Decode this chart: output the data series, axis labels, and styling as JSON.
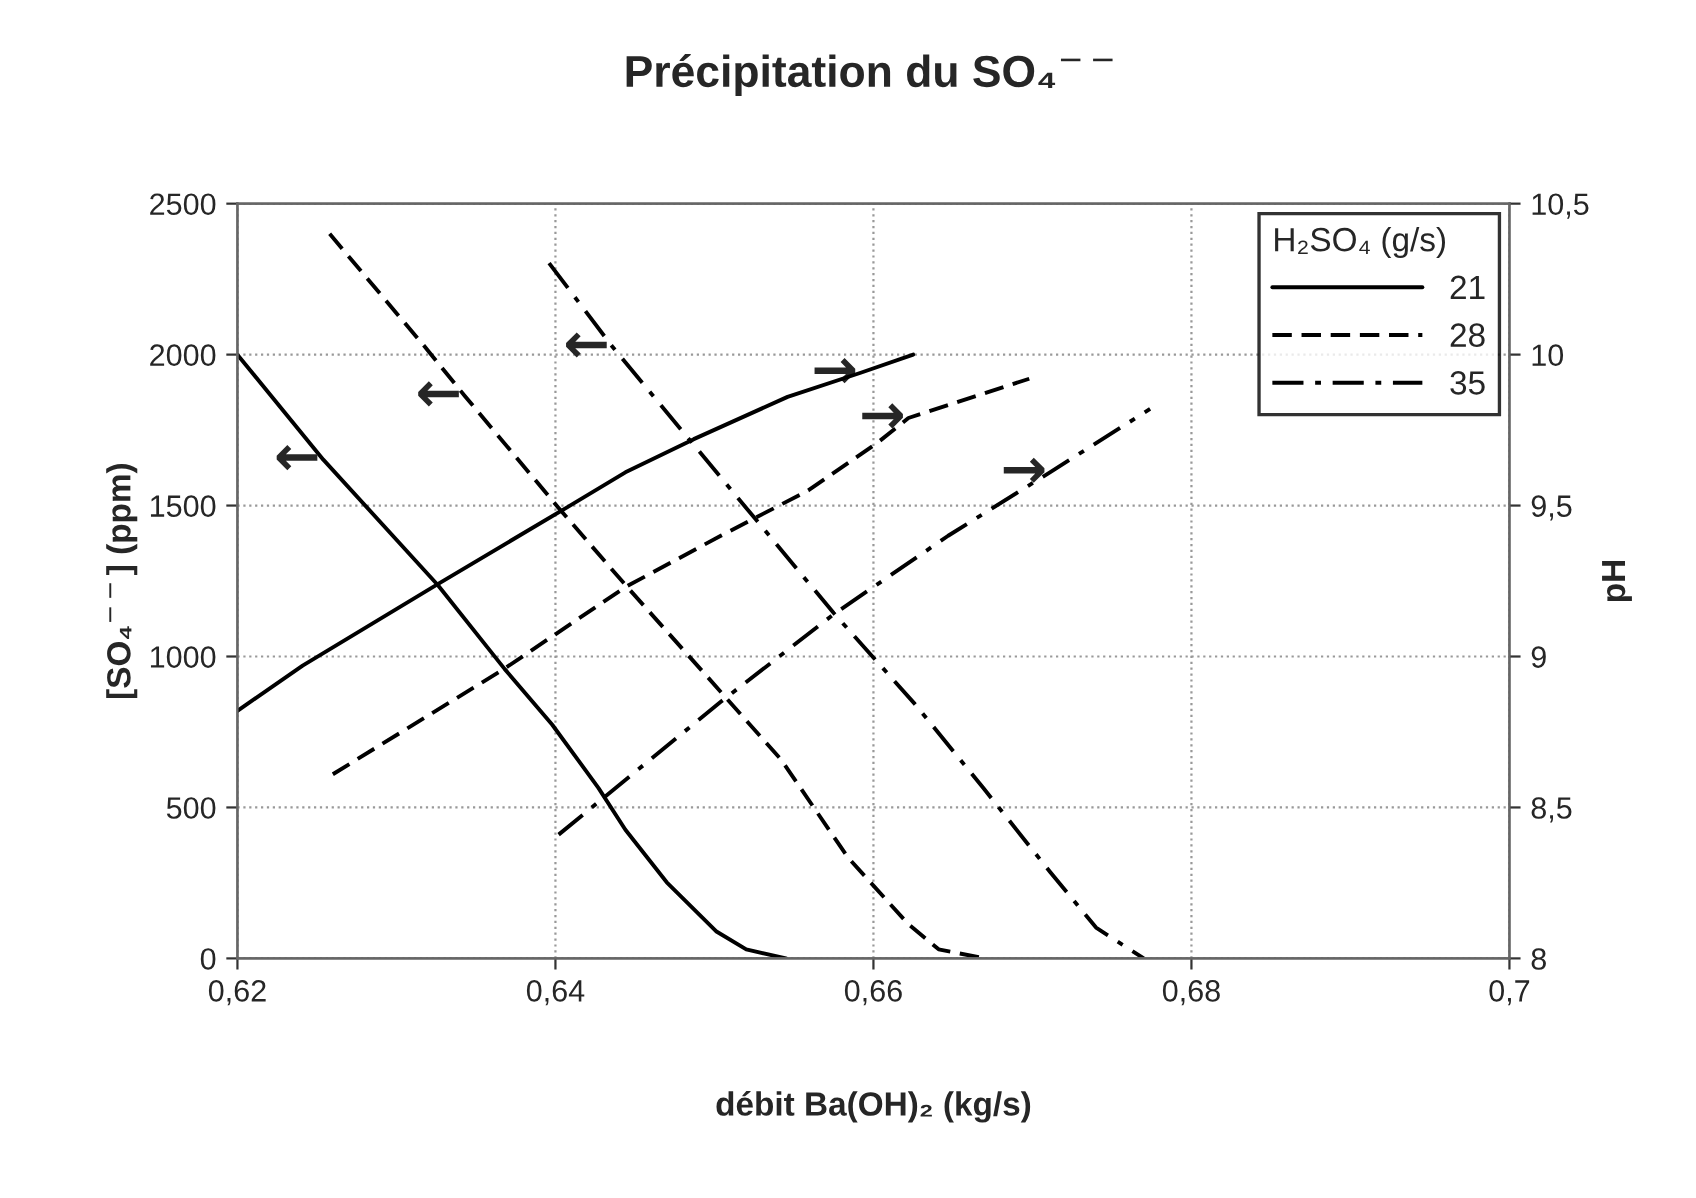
{
  "chart_data": {
    "type": "line",
    "title": "Précipitation du SO₄$^{−−}$",
    "xlabel": "débit Ba(OH)₂ (kg/s)",
    "ylabel": "[SO₄$^{−−}$] (ppm)",
    "y2label": "pH",
    "legend_title": "H₂SO₄ (g/s)",
    "xlim": [
      0.62,
      0.7
    ],
    "xticks": [
      {
        "value": 0.62,
        "label": "0,62"
      },
      {
        "value": 0.64,
        "label": "0,64"
      },
      {
        "value": 0.66,
        "label": "0,66"
      },
      {
        "value": 0.68,
        "label": "0,68"
      },
      {
        "value": 0.7,
        "label": "0,7"
      }
    ],
    "ylim": [
      0,
      2500
    ],
    "yticks": [
      0,
      500,
      1000,
      1500,
      2000,
      2500
    ],
    "y2lim": [
      8,
      10.5
    ],
    "y2ticks": [
      8,
      {
        "value": 8.5,
        "label": "8,5"
      },
      9,
      {
        "value": 9.5,
        "label": "9,5"
      },
      10,
      {
        "value": 10.5,
        "label": "10,5"
      }
    ],
    "grid": true,
    "legend": "top right",
    "series": [
      {
        "name": "21",
        "color": "#000000",
        "line_style": "solid",
        "x": [
          0.62,
          0.6254,
          0.6326,
          0.6368,
          0.6398,
          0.6427,
          0.6444,
          0.647,
          0.6501,
          0.652,
          0.6545
        ],
        "values": [
          2000,
          1652,
          1237,
          959,
          774,
          565,
          426,
          252,
          90,
          30,
          0
        ]
      },
      {
        "name": "28",
        "color": "#000000",
        "line_style": "dashed",
        "x": [
          0.6258,
          0.6318,
          0.6343,
          0.6402,
          0.6444,
          0.6495,
          0.6542,
          0.6584,
          0.6622,
          0.6641,
          0.667
        ],
        "values": [
          2400,
          2025,
          1863,
          1492,
          1237,
          936,
          658,
          334,
          113,
          30,
          0
        ]
      },
      {
        "name": "35",
        "color": "#000000",
        "line_style": "dashdot",
        "x": [
          0.6396,
          0.6436,
          0.6487,
          0.652,
          0.6575,
          0.6626,
          0.6669,
          0.6711,
          0.674,
          0.677
        ],
        "values": [
          2303,
          2025,
          1701,
          1492,
          1144,
          843,
          565,
          287,
          102,
          0
        ]
      },
      {
        "color": "#000000",
        "line_style": "solid",
        "axis": "y2",
        "x": [
          0.62,
          0.6241,
          0.6326,
          0.6406,
          0.6444,
          0.6487,
          0.6546,
          0.6592,
          0.6625
        ],
        "values": [
          8.82,
          8.97,
          9.24,
          9.49,
          9.61,
          9.72,
          9.86,
          9.94,
          10.0
        ]
      },
      {
        "color": "#000000",
        "line_style": "dashed",
        "axis": "y2",
        "x": [
          0.626,
          0.6368,
          0.6444,
          0.6504,
          0.6559,
          0.6603,
          0.6622,
          0.6698
        ],
        "values": [
          8.61,
          8.96,
          9.23,
          9.4,
          9.55,
          9.71,
          9.79,
          9.92
        ]
      },
      {
        "color": "#000000",
        "line_style": "dashdot",
        "axis": "y2",
        "x": [
          0.6402,
          0.6504,
          0.6575,
          0.6647,
          0.6711,
          0.6774
        ],
        "values": [
          8.41,
          8.85,
          9.14,
          9.4,
          9.61,
          9.82
        ]
      }
    ],
    "annotations": [
      {
        "text": "←",
        "x": 0.6254,
        "y": 1652
      },
      {
        "text": "←",
        "x": 0.6343,
        "y": 1863
      },
      {
        "text": "←",
        "x": 0.6436,
        "y": 2025
      },
      {
        "text": "→",
        "x": 0.6592,
        "y": 1940
      },
      {
        "text": "→",
        "x": 0.6622,
        "y": 1790
      },
      {
        "text": "→",
        "x": 0.6711,
        "y": 1610
      }
    ]
  }
}
